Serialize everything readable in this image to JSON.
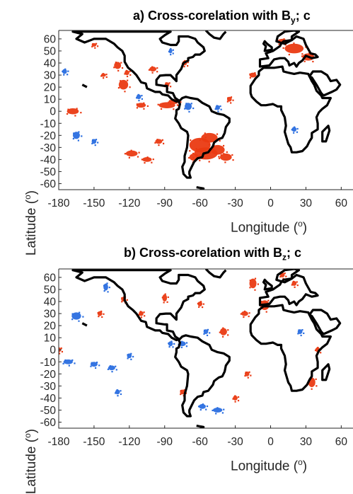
{
  "panels": [
    {
      "id": "a",
      "title_prefix": "a) Cross-corelation with B",
      "title_sub": "y",
      "title_suffix": "; c",
      "y_label_text": "Latitude (",
      "y_label_sup": "o",
      "y_label_close": ")",
      "x_label_text": "Longitude (",
      "x_label_sup": "o",
      "x_label_close": ")"
    },
    {
      "id": "b",
      "title_prefix": "b) Cross-corelation with B",
      "title_sub": "z",
      "title_suffix": "; c",
      "y_label_text": "Latitude (",
      "y_label_sup": "o",
      "y_label_close": ")",
      "x_label_text": "Longitude (",
      "x_label_sup": "o",
      "x_label_close": ")"
    }
  ],
  "axes": {
    "x_ticks": [
      "-180",
      "-150",
      "-120",
      "-90",
      "-60",
      "-30",
      "0",
      "30",
      "60"
    ],
    "x_tick_values": [
      -180,
      -150,
      -120,
      -90,
      -60,
      -30,
      0,
      30,
      60
    ],
    "y_ticks": [
      "60",
      "50",
      "40",
      "30",
      "20",
      "10",
      "0",
      "-10",
      "-20",
      "-30",
      "-40",
      "-50",
      "-60"
    ],
    "y_tick_values": [
      60,
      50,
      40,
      30,
      20,
      10,
      0,
      -10,
      -20,
      -30,
      -40,
      -50,
      -60
    ],
    "lon_range": [
      -180,
      70
    ],
    "lat_range": [
      -65,
      67
    ]
  },
  "colors": {
    "positive": "#ea3a12",
    "negative": "#2a6ee0",
    "coast": "#000000"
  },
  "blobs": {
    "a": {
      "positive": [
        [
          -60,
          -28,
          9,
          6
        ],
        [
          -55,
          -35,
          10,
          5
        ],
        [
          -45,
          -32,
          6,
          4
        ],
        [
          -52,
          -22,
          7,
          4
        ],
        [
          -38,
          -38,
          5,
          3
        ],
        [
          -65,
          -38,
          4,
          3
        ],
        [
          -118,
          -35,
          5,
          2.5
        ],
        [
          -105,
          -40,
          4,
          2
        ],
        [
          -88,
          5,
          7,
          2.5
        ],
        [
          -82,
          8,
          4,
          2
        ],
        [
          -110,
          5,
          4,
          2
        ],
        [
          -168,
          0,
          5,
          2.5
        ],
        [
          -125,
          22,
          4,
          4
        ],
        [
          -130,
          38,
          3,
          3
        ],
        [
          -122,
          32,
          2,
          2
        ],
        [
          -100,
          35,
          3,
          2
        ],
        [
          -73,
          40,
          2,
          2
        ],
        [
          20,
          52,
          8,
          4
        ],
        [
          32,
          45,
          5,
          3
        ],
        [
          10,
          58,
          4,
          2
        ],
        [
          -15,
          30,
          3,
          2
        ],
        [
          -35,
          10,
          2,
          2
        ],
        [
          -150,
          55,
          2,
          1.5
        ],
        [
          -88,
          22,
          2,
          2
        ],
        [
          -95,
          -25,
          3,
          2
        ],
        [
          -142,
          30,
          2,
          1.5
        ]
      ],
      "negative": [
        [
          -165,
          -20,
          3,
          3
        ],
        [
          -150,
          -25,
          2,
          2
        ],
        [
          -70,
          4,
          3,
          3
        ],
        [
          -45,
          3,
          2,
          2
        ],
        [
          -112,
          12,
          2,
          2
        ],
        [
          -85,
          50,
          1.5,
          2
        ],
        [
          20,
          -15,
          2,
          2
        ],
        [
          -175,
          33,
          2,
          2
        ]
      ]
    },
    "b": {
      "positive": [
        [
          -15,
          55,
          3,
          4
        ],
        [
          -5,
          37,
          4,
          4
        ],
        [
          10,
          62,
          2,
          2
        ],
        [
          20,
          55,
          2,
          2
        ],
        [
          35,
          -27,
          3,
          4
        ],
        [
          -40,
          15,
          3,
          3
        ],
        [
          -22,
          30,
          3,
          2
        ],
        [
          -90,
          43,
          2,
          3
        ],
        [
          -60,
          38,
          2,
          2
        ],
        [
          -145,
          30,
          2,
          2
        ],
        [
          -125,
          42,
          2,
          2
        ],
        [
          -75,
          -35,
          2,
          2
        ],
        [
          -20,
          -20,
          2,
          2
        ],
        [
          -180,
          0,
          2,
          2
        ],
        [
          -110,
          30,
          2,
          2
        ],
        [
          -30,
          -40,
          2,
          2
        ],
        [
          40,
          0,
          2,
          2
        ]
      ],
      "negative": [
        [
          -165,
          28,
          4,
          3
        ],
        [
          -150,
          -12,
          3,
          2
        ],
        [
          -172,
          -10,
          4,
          2
        ],
        [
          -135,
          -15,
          3,
          2
        ],
        [
          -130,
          -35,
          2,
          2
        ],
        [
          -75,
          5,
          3,
          2
        ],
        [
          -45,
          -50,
          4,
          2
        ],
        [
          -58,
          -47,
          3,
          2
        ],
        [
          -85,
          5,
          2,
          2
        ],
        [
          -140,
          52,
          2,
          3
        ],
        [
          -120,
          -5,
          2,
          2
        ],
        [
          -55,
          15,
          2,
          2
        ],
        [
          25,
          15,
          2,
          2
        ]
      ]
    }
  }
}
